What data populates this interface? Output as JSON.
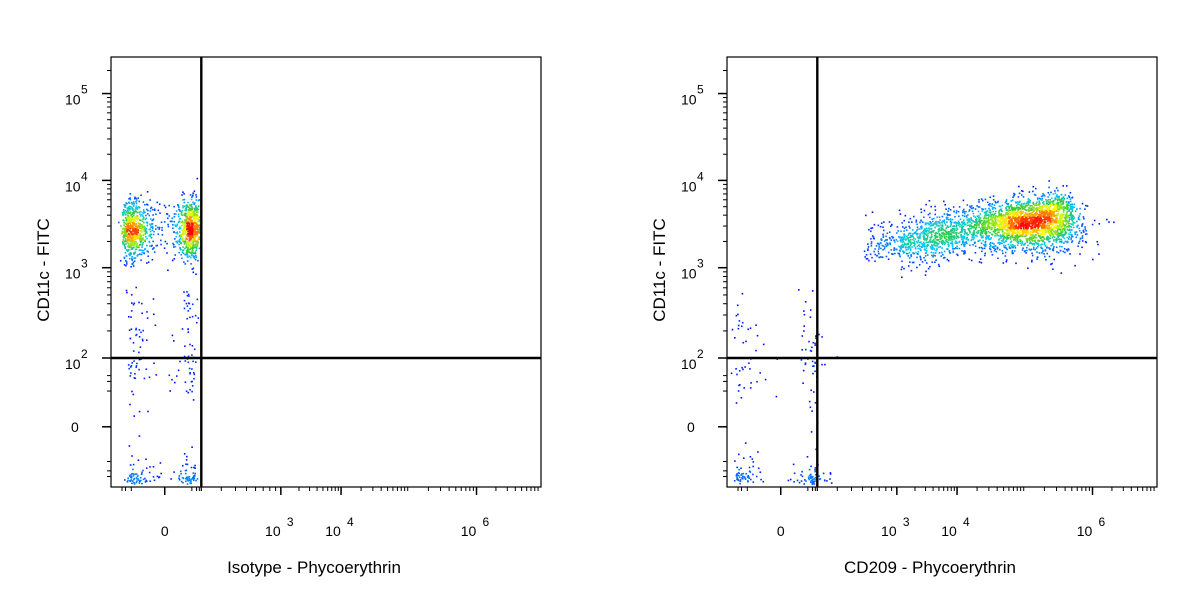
{
  "chart_data": [
    {
      "type": "scatter",
      "title": "",
      "xlabel": "Isotype - Phycoerythrin",
      "ylabel": "CD11c - FITC",
      "x_scale": "biexponential",
      "y_scale": "biexponential",
      "x_ticks": [
        {
          "value": 0,
          "base": "0",
          "exp": ""
        },
        {
          "value": 1000,
          "base": "10",
          "exp": "3"
        },
        {
          "value": 10000,
          "base": "10",
          "exp": "4"
        },
        {
          "value": 1000000,
          "base": "10",
          "exp": "6"
        }
      ],
      "y_ticks": [
        {
          "value": 0,
          "base": "0",
          "exp": ""
        },
        {
          "value": 100,
          "base": "10",
          "exp": "2"
        },
        {
          "value": 1000,
          "base": "10",
          "exp": "3"
        },
        {
          "value": 10000,
          "base": "10",
          "exp": "4"
        },
        {
          "value": 100000,
          "base": "10",
          "exp": "5"
        }
      ],
      "quadrant_gate": {
        "x": 200,
        "y": 100
      },
      "populations": [
        {
          "x_center": 0,
          "x_spread": 60,
          "y_center": 2800,
          "y_spread_log": 0.17,
          "count": 1400,
          "color_density": "high"
        },
        {
          "x_center": 0,
          "x_spread": 40,
          "y_center": 10,
          "y_spread_log": 0.9,
          "count": 260,
          "color_density": "low"
        }
      ],
      "grid": false,
      "legend": "none"
    },
    {
      "type": "scatter",
      "title": "",
      "xlabel": "CD209 - Phycoerythrin",
      "ylabel": "CD11c - FITC",
      "x_scale": "biexponential",
      "y_scale": "biexponential",
      "x_ticks": [
        {
          "value": 0,
          "base": "0",
          "exp": ""
        },
        {
          "value": 1000,
          "base": "10",
          "exp": "3"
        },
        {
          "value": 10000,
          "base": "10",
          "exp": "4"
        },
        {
          "value": 1000000,
          "base": "10",
          "exp": "6"
        }
      ],
      "y_ticks": [
        {
          "value": 0,
          "base": "0",
          "exp": ""
        },
        {
          "value": 100,
          "base": "10",
          "exp": "2"
        },
        {
          "value": 1000,
          "base": "10",
          "exp": "3"
        },
        {
          "value": 10000,
          "base": "10",
          "exp": "4"
        },
        {
          "value": 100000,
          "base": "10",
          "exp": "5"
        }
      ],
      "quadrant_gate": {
        "x": 200,
        "y": 100
      },
      "populations": [
        {
          "x_from": 500,
          "x_to": 500000,
          "y_from": 1800,
          "y_to": 4500,
          "count": 2200,
          "peak_x": 200000,
          "color_density": "high"
        },
        {
          "x_center": 150000,
          "x_spread_log": 0.35,
          "y_center": 3000,
          "y_spread_log": 0.15,
          "count": 1100,
          "color_density": "high"
        },
        {
          "x_center": 0,
          "x_spread": 120,
          "y_center": 10,
          "y_spread_log": 0.9,
          "count": 220,
          "color_density": "low"
        }
      ],
      "grid": false,
      "legend": "none"
    }
  ],
  "colors": {
    "low_density": "#0000ff",
    "mid_density": "#00c8ff",
    "green_density": "#33cc33",
    "yellow_density": "#ffff00",
    "high_density": "#ff0000",
    "axis": "#000000",
    "background": "#ffffff"
  }
}
